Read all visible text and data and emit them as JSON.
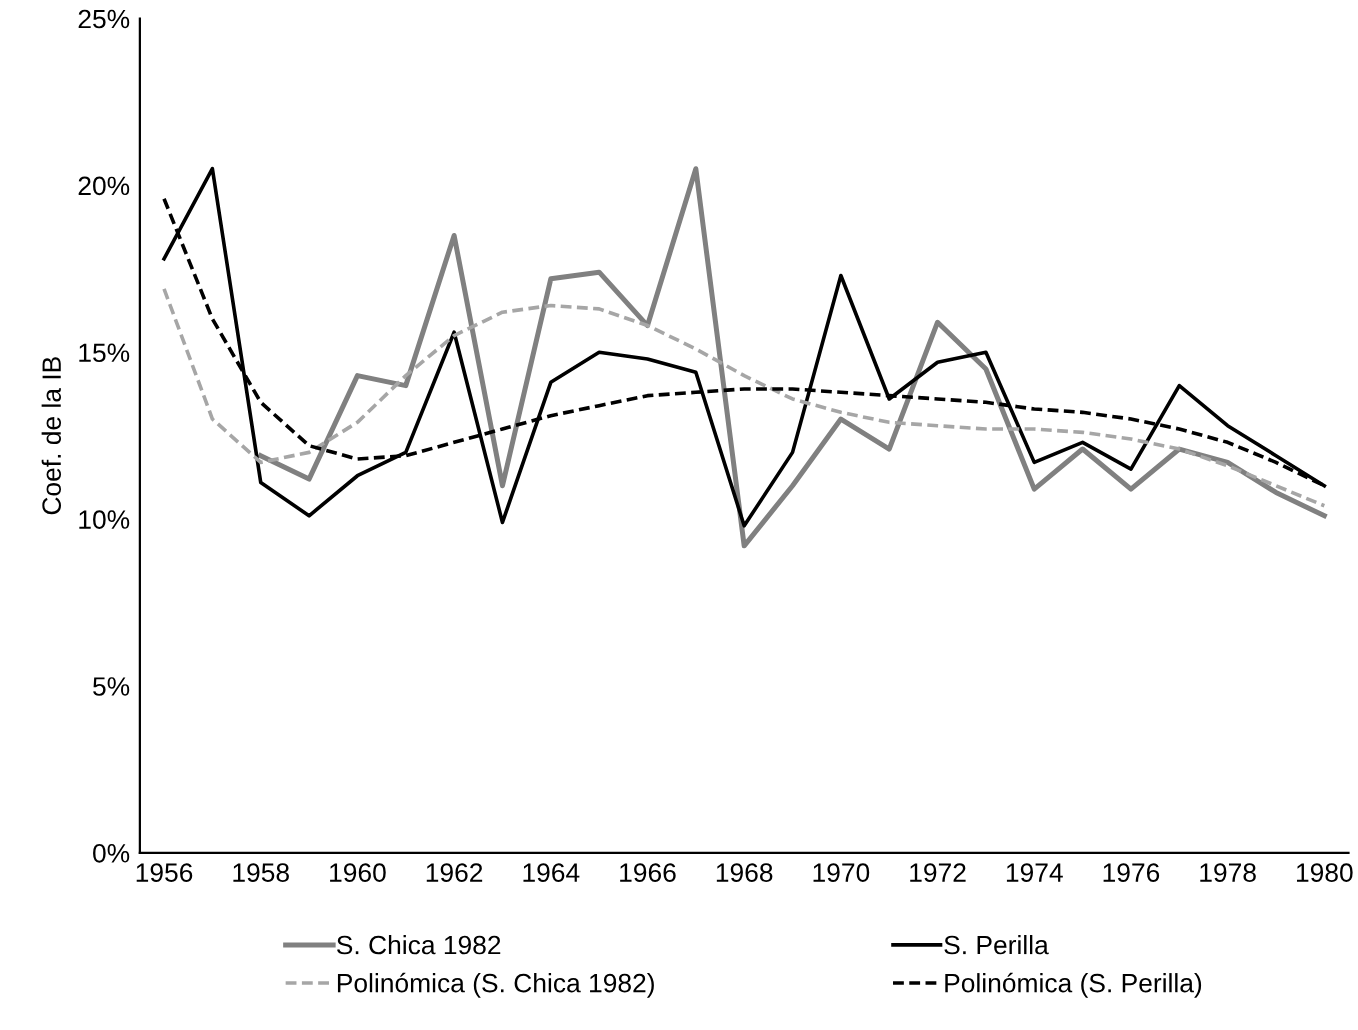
{
  "chart_data": {
    "type": "line",
    "ylabel": "Coef. de la IB",
    "x": [
      1956,
      1957,
      1958,
      1959,
      1960,
      1961,
      1962,
      1963,
      1964,
      1965,
      1966,
      1967,
      1968,
      1969,
      1970,
      1971,
      1972,
      1973,
      1974,
      1975,
      1976,
      1977,
      1978,
      1979,
      1980
    ],
    "series": [
      {
        "name": "S. Chica 1982",
        "color": "#808080",
        "line_style": "solid",
        "x": [
          1958,
          1959,
          1960,
          1961,
          1962,
          1963,
          1964,
          1965,
          1966,
          1967,
          1968,
          1969,
          1970,
          1971,
          1972,
          1973,
          1974,
          1975,
          1976,
          1977,
          1978,
          1979,
          1980
        ],
        "values": [
          11.9,
          11.2,
          14.3,
          14.0,
          18.5,
          11.0,
          17.2,
          17.4,
          15.8,
          20.5,
          9.2,
          11.0,
          13.0,
          12.1,
          15.9,
          14.5,
          10.9,
          12.1,
          10.9,
          12.1,
          11.7,
          10.8,
          10.1
        ]
      },
      {
        "name": "S. Perilla",
        "color": "#000000",
        "line_style": "solid",
        "values": [
          17.8,
          20.5,
          11.1,
          10.1,
          11.3,
          12.0,
          15.6,
          9.9,
          14.1,
          15.0,
          14.8,
          14.4,
          9.8,
          12.0,
          17.3,
          13.6,
          14.7,
          15.0,
          11.7,
          12.3,
          11.5,
          14.0,
          12.8,
          11.9,
          11.0
        ]
      },
      {
        "name": "Polinómica (S. Chica 1982)",
        "color": "#a6a6a6",
        "line_style": "dashed",
        "values": [
          16.9,
          13.0,
          11.7,
          12.0,
          12.9,
          14.3,
          15.5,
          16.2,
          16.4,
          16.3,
          15.8,
          15.1,
          14.3,
          13.6,
          13.2,
          12.9,
          12.8,
          12.7,
          12.7,
          12.6,
          12.4,
          12.1,
          11.6,
          11.0,
          10.4
        ]
      },
      {
        "name": "Polinómica (S. Perilla)",
        "color": "#000000",
        "line_style": "dashed",
        "values": [
          19.6,
          16.0,
          13.5,
          12.2,
          11.8,
          11.9,
          12.3,
          12.7,
          13.1,
          13.4,
          13.7,
          13.8,
          13.9,
          13.9,
          13.8,
          13.7,
          13.6,
          13.5,
          13.3,
          13.2,
          13.0,
          12.7,
          12.3,
          11.7,
          11.0
        ]
      }
    ],
    "xlim": [
      1955.5,
      1980.5
    ],
    "xticks": [
      1956,
      1958,
      1960,
      1962,
      1964,
      1966,
      1968,
      1970,
      1972,
      1974,
      1976,
      1978,
      1980
    ],
    "ylim": [
      0,
      25
    ],
    "yticks": [
      {
        "value": 0,
        "label": "0%"
      },
      {
        "value": 5,
        "label": "5%"
      },
      {
        "value": 10,
        "label": "10%"
      },
      {
        "value": 15,
        "label": "15%"
      },
      {
        "value": 20,
        "label": "20%"
      },
      {
        "value": 25,
        "label": "25%"
      }
    ],
    "grid": false,
    "legend": "bottom",
    "marker": "none"
  }
}
